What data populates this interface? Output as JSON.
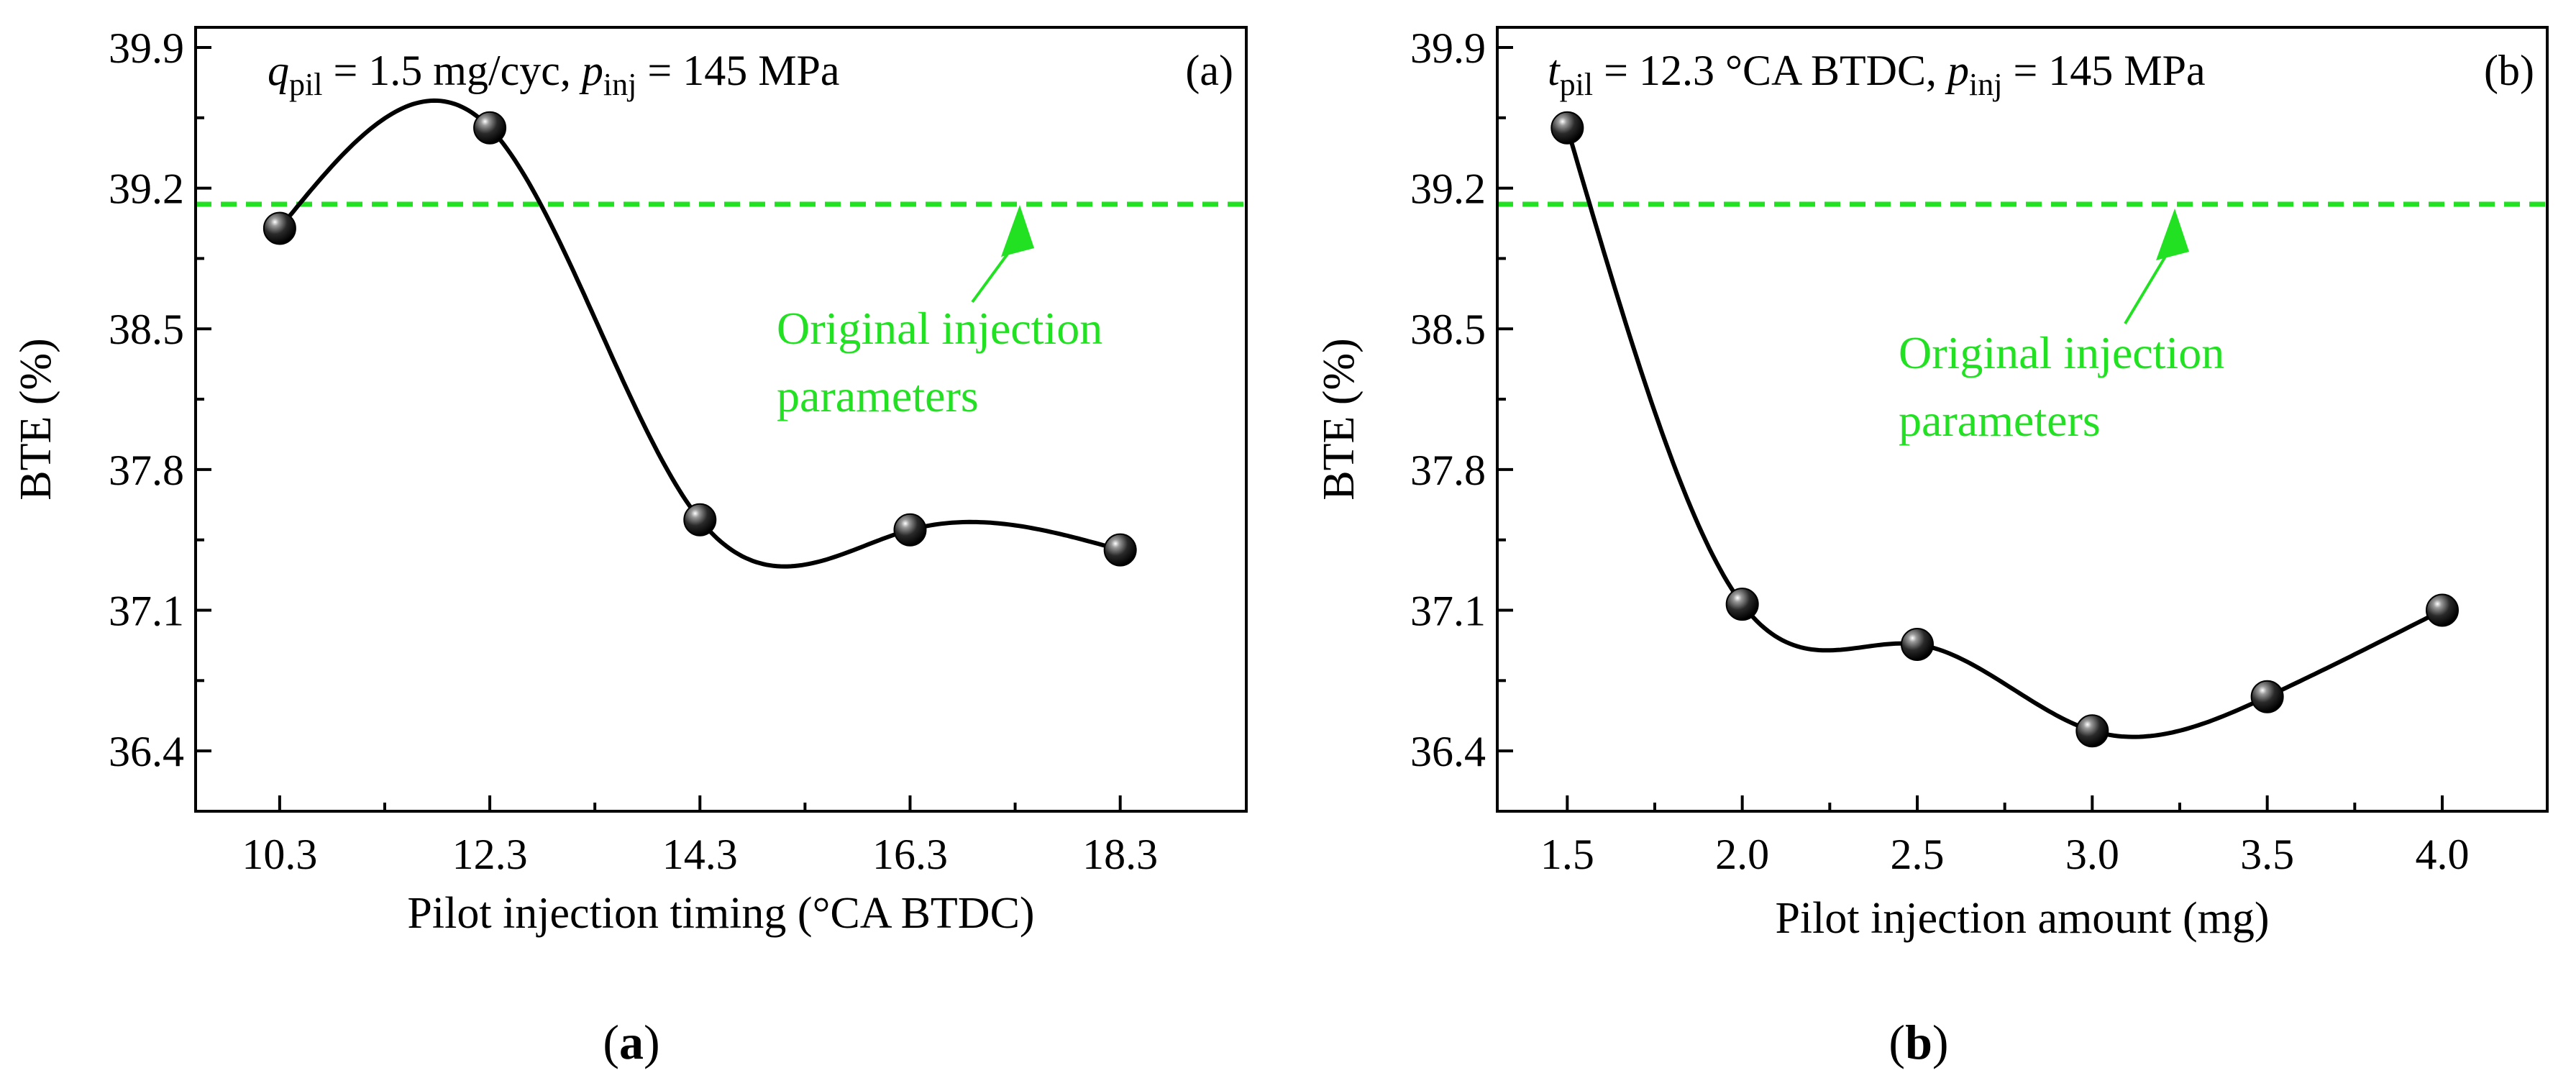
{
  "colors": {
    "reference": "#22e022",
    "curve": "#000000",
    "marker": "#111111"
  },
  "chart_data": [
    {
      "id": "a",
      "type": "line",
      "panel_label": "(a)",
      "caption_letter": "a",
      "condition": {
        "var1": "q",
        "sub1": "pil",
        "rest1": " = 1.5 mg/cyc, ",
        "var2": "p",
        "sub2": "inj",
        "rest2": " = 145 MPa"
      },
      "xlabel": "Pilot injection timing (°CA BTDC)",
      "ylabel": "BTE (%)",
      "x": [
        10.3,
        12.3,
        14.3,
        16.3,
        18.3
      ],
      "y": [
        39.0,
        39.5,
        37.55,
        37.5,
        37.4
      ],
      "x_ticks": [
        "10.3",
        "12.3",
        "14.3",
        "16.3",
        "18.3"
      ],
      "y_ticks": [
        "36.4",
        "37.1",
        "37.8",
        "38.5",
        "39.2",
        "39.9"
      ],
      "xlim": [
        9.5,
        19.5
      ],
      "ylim": [
        36.1,
        40.0
      ],
      "reference_line": {
        "y": 39.12,
        "label_line1": "Original injection",
        "label_line2": "parameters"
      }
    },
    {
      "id": "b",
      "type": "line",
      "panel_label": "(b)",
      "caption_letter": "b",
      "condition": {
        "var1": "t",
        "sub1": "pil",
        "rest1": " = 12.3 °CA BTDC, ",
        "var2": "p",
        "sub2": "inj",
        "rest2": " = 145 MPa"
      },
      "xlabel": "Pilot injection amount (mg)",
      "ylabel": "BTE (%)",
      "x": [
        1.5,
        2.0,
        2.5,
        3.0,
        3.5,
        4.0
      ],
      "y": [
        39.5,
        37.13,
        36.93,
        36.5,
        36.67,
        37.1
      ],
      "x_ticks": [
        "1.5",
        "2.0",
        "2.5",
        "3.0",
        "3.5",
        "4.0"
      ],
      "y_ticks": [
        "36.4",
        "37.1",
        "37.8",
        "38.5",
        "39.2",
        "39.9"
      ],
      "xlim": [
        1.3,
        4.3
      ],
      "ylim": [
        36.1,
        40.0
      ],
      "reference_line": {
        "y": 39.12,
        "label_line1": "Original injection",
        "label_line2": "parameters"
      }
    }
  ]
}
